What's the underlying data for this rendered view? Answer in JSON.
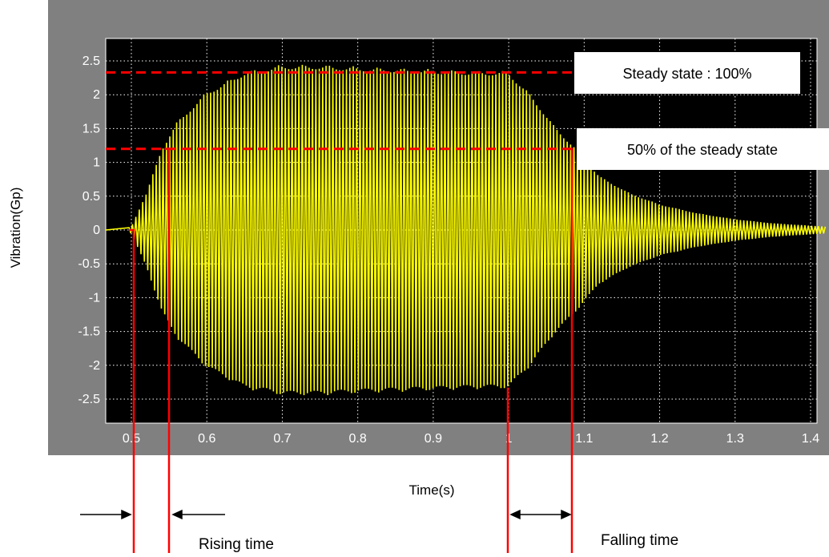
{
  "chart_data": {
    "type": "line",
    "xlabel": "Time(s)",
    "ylabel": "Vibration(Gp)",
    "xlim": [
      0.49,
      1.42
    ],
    "ylim": [
      -2.75,
      2.75
    ],
    "x_ticks": [
      0.5,
      0.6,
      0.7,
      0.8,
      0.9,
      1.0,
      1.1,
      1.2,
      1.3,
      1.4
    ],
    "x_tick_labels": [
      "0.5",
      "0.6",
      "0.7",
      "0.8",
      "0.9",
      "1",
      "1.1",
      "1.2",
      "1.3",
      "1.4"
    ],
    "y_ticks": [
      2.5,
      2,
      1.5,
      1,
      0.5,
      0,
      -0.5,
      -1,
      -1.5,
      -2,
      -2.5
    ],
    "y_tick_labels": [
      "2.5",
      "2",
      "1.5",
      "1",
      "0.5",
      "0",
      "-0.5",
      "-1",
      "-1.5",
      "-2",
      "-2.5"
    ],
    "grid": true,
    "series": [
      {
        "color": "#ffff00",
        "envelope": {
          "x": [
            0.49,
            0.5,
            0.52,
            0.54,
            0.56,
            0.6,
            0.65,
            0.7,
            0.75,
            0.8,
            0.85,
            0.9,
            0.95,
            1.0,
            1.03,
            1.06,
            1.09,
            1.12,
            1.16,
            1.2,
            1.25,
            1.3,
            1.35,
            1.42
          ],
          "y": [
            0.0,
            0.05,
            0.55,
            1.2,
            1.6,
            2.05,
            2.35,
            2.45,
            2.45,
            2.42,
            2.4,
            2.38,
            2.36,
            2.35,
            2.0,
            1.55,
            1.2,
            0.8,
            0.55,
            0.38,
            0.25,
            0.16,
            0.1,
            0.05
          ]
        }
      }
    ],
    "reference_lines": [
      {
        "y": 2.33,
        "style": "dashed",
        "color": "#ff0000",
        "label": "Steady state : 100%"
      },
      {
        "y": 1.2,
        "style": "dashed",
        "color": "#ff0000",
        "label": "50% of the steady state"
      }
    ],
    "markers": [
      {
        "x": 0.497,
        "color": "#ff0000"
      },
      {
        "x": 0.544,
        "color": "#ff0000"
      },
      {
        "x": 1.005,
        "color": "#ff0000"
      },
      {
        "x": 1.09,
        "color": "#ff0000"
      }
    ],
    "annotations": {
      "rising": "Rising time",
      "falling": "Falling time"
    }
  },
  "colors": {
    "frame": "#808080",
    "plot_background": "#000000",
    "signal": "#ffff00",
    "grid": "#ffffff",
    "markers": "#ff0000"
  }
}
